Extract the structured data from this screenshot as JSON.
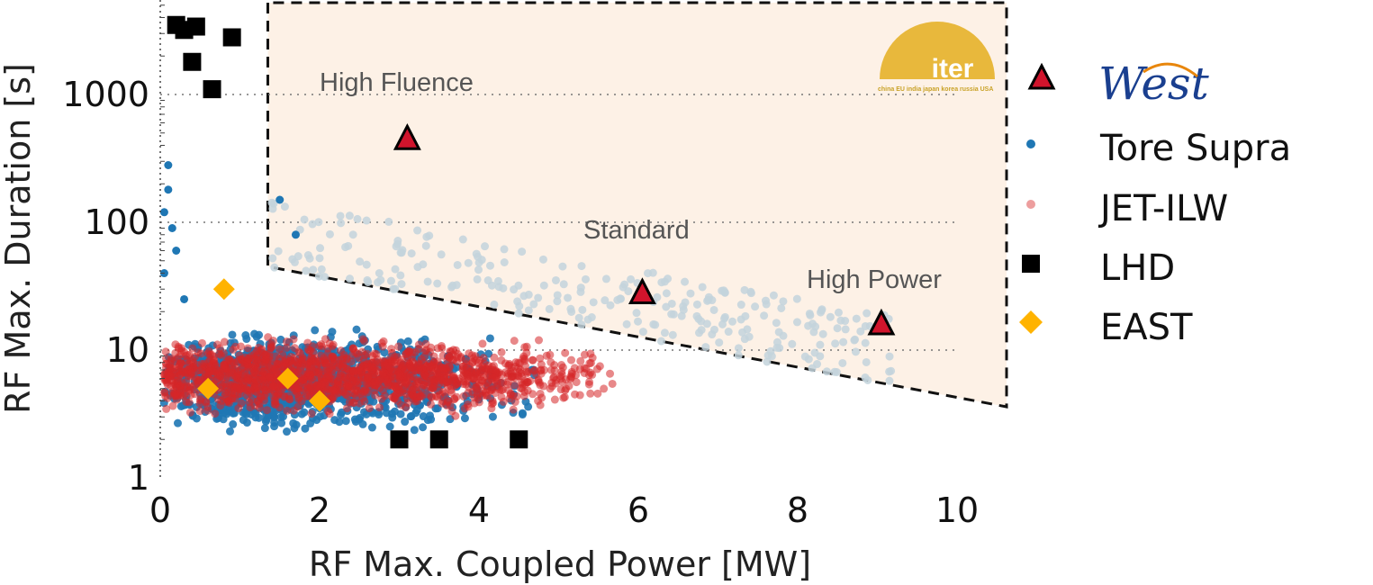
{
  "chart_data": {
    "type": "scatter",
    "title": "",
    "xlabel": "RF Max. Coupled Power [MW]",
    "ylabel": "RF Max. Duration [s]",
    "xlim": [
      0,
      10.5
    ],
    "ylim": [
      1,
      5000
    ],
    "yscale": "log",
    "x_ticks": [
      0,
      2,
      4,
      6,
      8,
      10
    ],
    "y_ticks": [
      {
        "value": 1,
        "label": "1"
      },
      {
        "value": 10,
        "label": "10"
      },
      {
        "value": 100,
        "label": "100"
      },
      {
        "value": 1000,
        "label": "1000"
      }
    ],
    "grid": "horizontal dotted at 10, 100, 1000",
    "legend_placement": "right outside",
    "colors": {
      "west": "#d0142c",
      "tore_supra": "#1f77b4",
      "jet_ilw": "#d62728",
      "lhd": "#000000",
      "east": "#ffb300",
      "iter_region": "#fdf1e6",
      "above_line": "#c3d3dc",
      "logo": "#e8b83c",
      "west_logo_blue": "#1a3f8f",
      "west_logo_orange": "#e8860c"
    },
    "legend": {
      "west_logo": "West",
      "items": [
        {
          "key": "tore_supra",
          "label": "Tore Supra"
        },
        {
          "key": "jet_ilw",
          "label": "JET-ILW"
        },
        {
          "key": "lhd",
          "label": "LHD"
        },
        {
          "key": "east",
          "label": "EAST"
        }
      ]
    },
    "iter_region": {
      "logo_text": "iter",
      "logo_subtext": "china EU india japan korea russia USA",
      "boundary": [
        [
          1.35,
          5000
        ],
        [
          1.35,
          45
        ],
        [
          10.5,
          3.6
        ],
        [
          10.5,
          5000
        ]
      ]
    },
    "annotations": [
      {
        "text": "High Fluence",
        "x": 3.1,
        "y": 1000
      },
      {
        "text": "Standard",
        "x": 6.0,
        "y": 100
      },
      {
        "text": "High Power",
        "x": 9.0,
        "y": 12
      }
    ],
    "series": [
      {
        "name": "West",
        "key": "west",
        "marker": "triangle",
        "points": [
          [
            3.1,
            450
          ],
          [
            6.05,
            28
          ],
          [
            9.05,
            16
          ]
        ]
      },
      {
        "name": "LHD",
        "key": "lhd",
        "marker": "square",
        "points": [
          [
            0.2,
            3500
          ],
          [
            0.3,
            3200
          ],
          [
            0.45,
            3400
          ],
          [
            0.9,
            2800
          ],
          [
            0.4,
            1800
          ],
          [
            0.65,
            1100
          ],
          [
            3.0,
            2
          ],
          [
            3.5,
            2
          ],
          [
            4.5,
            2
          ]
        ]
      },
      {
        "name": "EAST",
        "key": "east",
        "marker": "diamond",
        "points": [
          [
            0.8,
            30
          ],
          [
            0.6,
            5
          ],
          [
            1.6,
            6
          ],
          [
            2.0,
            4
          ]
        ]
      },
      {
        "name": "Tore Supra",
        "key": "tore_supra",
        "marker": "circle",
        "points": [
          [
            0.1,
            280
          ],
          [
            0.1,
            180
          ],
          [
            0.05,
            120
          ],
          [
            0.15,
            90
          ],
          [
            0.2,
            60
          ],
          [
            0.05,
            40
          ],
          [
            0.3,
            25
          ],
          [
            1.5,
            150
          ],
          [
            1.7,
            80
          ]
        ]
      },
      {
        "name": "JET-ILW",
        "key": "jet_ilw",
        "marker": "circle",
        "points": []
      }
    ]
  }
}
